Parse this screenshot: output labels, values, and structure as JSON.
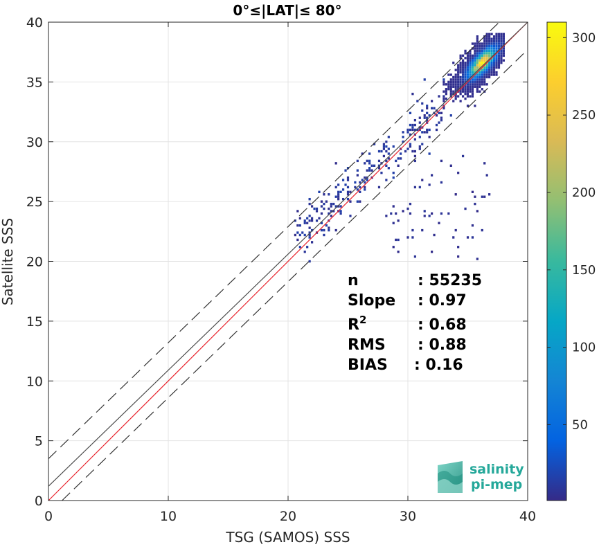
{
  "chart_data": {
    "type": "heatmap",
    "title": "0°≤|LAT|≤ 80°",
    "xlabel": "TSG (SAMOS) SSS",
    "ylabel": "Satellite SSS",
    "xlim": [
      0,
      40
    ],
    "ylim": [
      0,
      40
    ],
    "xticks": [
      "0",
      "10",
      "20",
      "30",
      "40"
    ],
    "yticks": [
      "0",
      "5",
      "10",
      "15",
      "20",
      "25",
      "30",
      "35",
      "40"
    ],
    "grid": true,
    "colorbar": {
      "colormap": "parula",
      "range": [
        1,
        310
      ],
      "ticks": [
        "50",
        "100",
        "150",
        "200",
        "250",
        "300"
      ]
    },
    "reference_lines": [
      {
        "name": "1:1 line",
        "color": "#e8222b",
        "style": "solid",
        "intercept": 0,
        "slope": 1
      },
      {
        "name": "regression fit",
        "color": "#4a4a4a",
        "style": "solid",
        "intercept": 1.2,
        "slope": 0.97
      },
      {
        "name": "upper bound",
        "color": "#333333",
        "style": "dashed",
        "intercept": 3.5,
        "slope": 0.97
      },
      {
        "name": "lower bound",
        "color": "#333333",
        "style": "dashed",
        "intercept": -1.1,
        "slope": 0.97
      }
    ],
    "density": {
      "core_center": [
        36.2,
        36.6
      ],
      "core_spread": [
        1.1,
        1.2
      ],
      "peak_count": 280,
      "tail_start": [
        21,
        22
      ],
      "tail_end": [
        33,
        33
      ],
      "cluster_extent": {
        "x": [
          31.5,
          38.0
        ],
        "y": [
          32.0,
          39.0
        ]
      }
    },
    "stats": [
      {
        "label": "n",
        "value": ": 55235"
      },
      {
        "label": "Slope",
        "value": ": 0.97"
      },
      {
        "label": "R",
        "sup": "2",
        "value": ": 0.68"
      },
      {
        "label": "RMS",
        "value": ": 0.88"
      },
      {
        "label": "BIAS",
        "value": ": 0.16"
      }
    ]
  },
  "logo": {
    "line1": "salinity",
    "line2": "pi-mep",
    "color": "#25a89a"
  }
}
